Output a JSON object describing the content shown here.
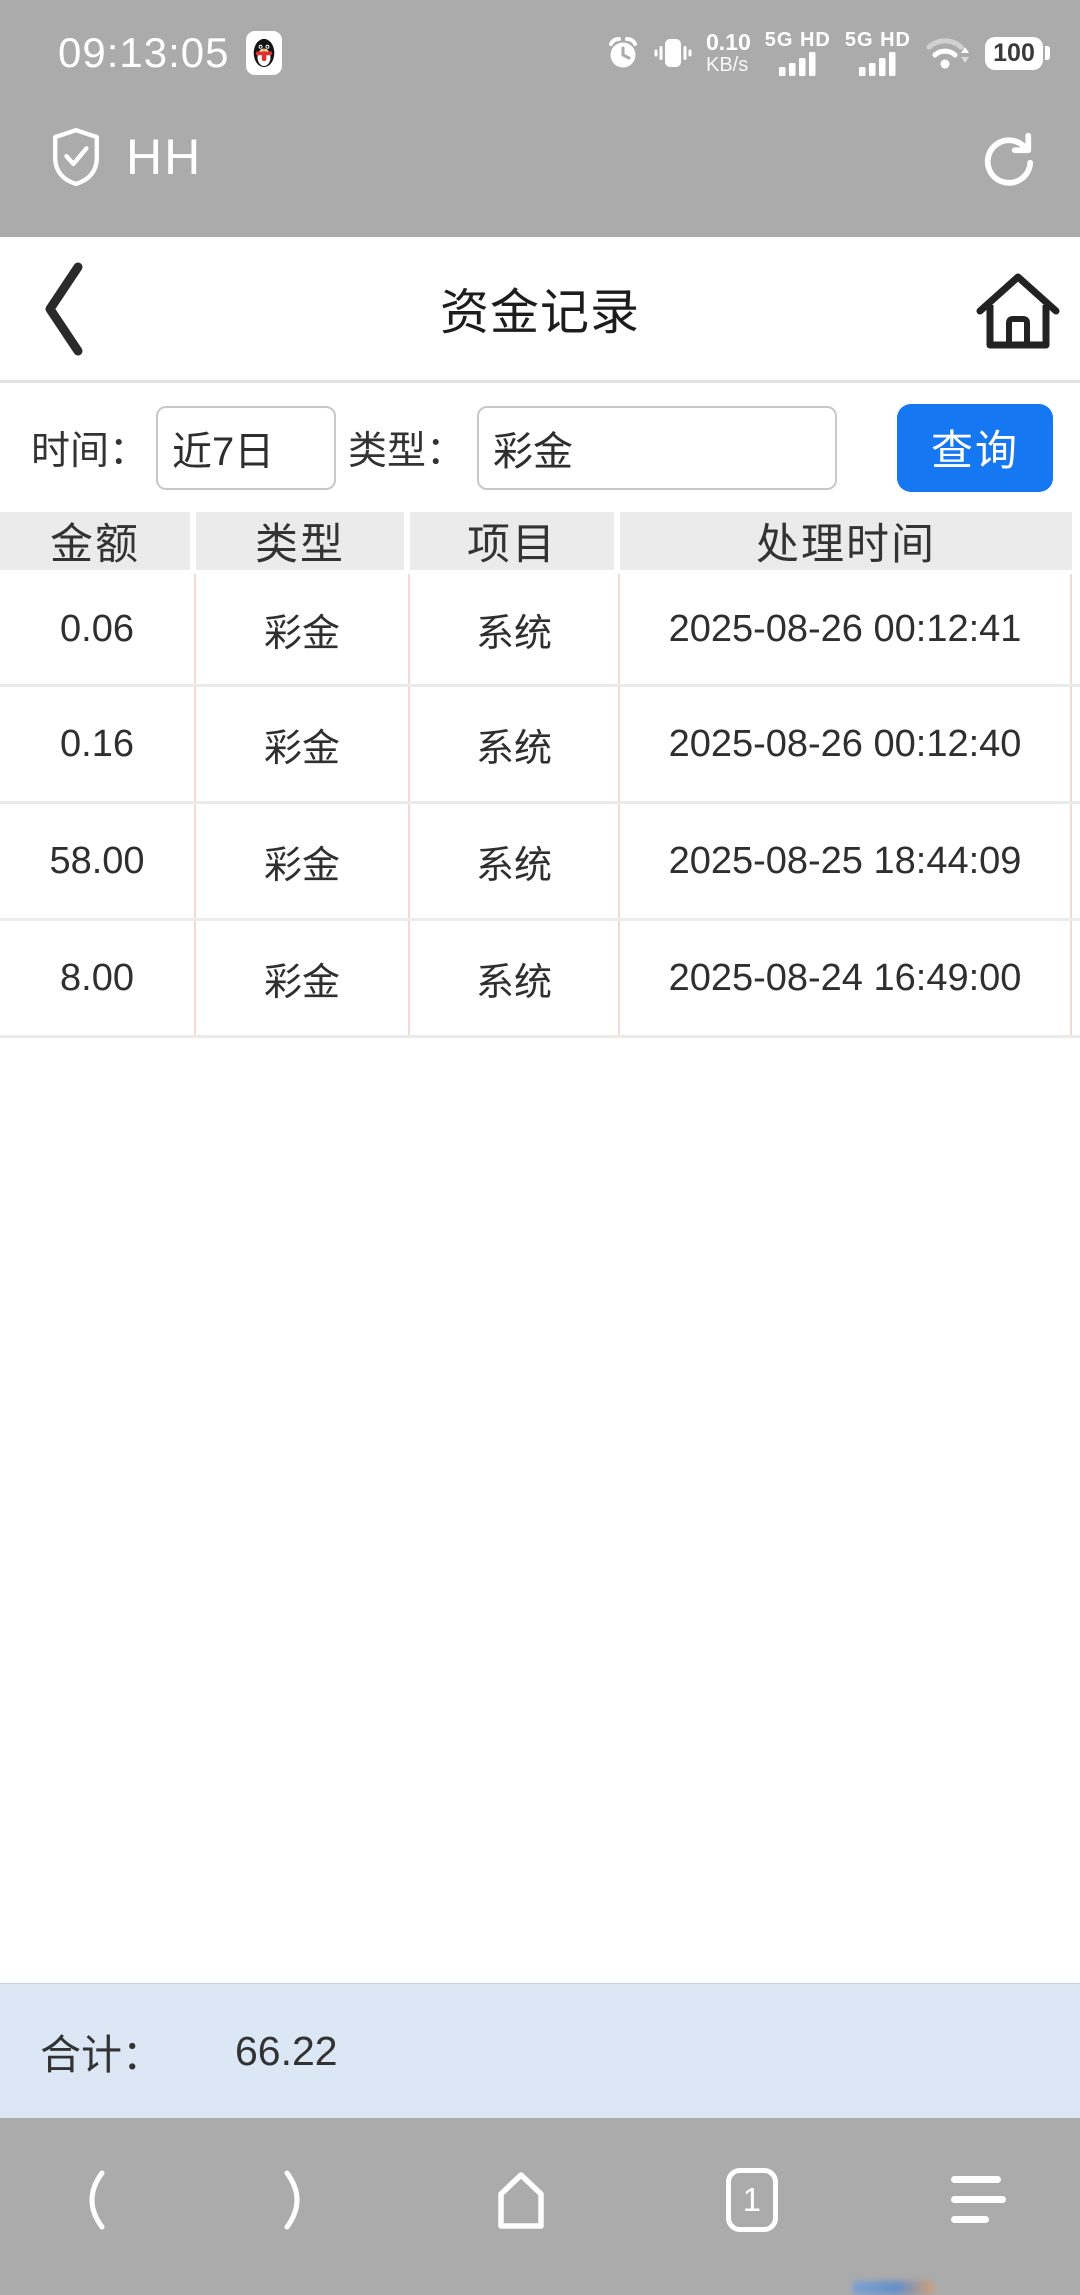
{
  "status_bar": {
    "time": "09:13:05",
    "network_speed_value": "0.10",
    "network_speed_unit": "KB/s",
    "sim1_label": "5G HD",
    "sim2_label": "5G HD",
    "battery_level": "100"
  },
  "app_bar": {
    "title": "HH"
  },
  "page_header": {
    "title": "资金记录"
  },
  "filters": {
    "time_label": "时间：",
    "time_value": "近7日",
    "type_label": "类型：",
    "type_value": "彩金",
    "query_button": "查询"
  },
  "table": {
    "headers": [
      "金额",
      "类型",
      "项目",
      "处理时间"
    ],
    "rows": [
      [
        "0.06",
        "彩金",
        "系统",
        "2025-08-26 00:12:41"
      ],
      [
        "0.16",
        "彩金",
        "系统",
        "2025-08-26 00:12:40"
      ],
      [
        "58.00",
        "彩金",
        "系统",
        "2025-08-25 18:44:09"
      ],
      [
        "8.00",
        "彩金",
        "系统",
        "2025-08-24 16:49:00"
      ]
    ]
  },
  "footer": {
    "total_label": "合计：",
    "total_value": "66.22"
  },
  "nav_bar": {
    "tab_count": "1"
  },
  "colors": {
    "accent_blue": "#1677f2",
    "chrome_gray": "#ababab",
    "footer_bg": "#dbe7f4",
    "table_header_bg": "#ebebeb",
    "divider_pink": "#f2d8d6",
    "divider_gray": "#ebebeb"
  }
}
